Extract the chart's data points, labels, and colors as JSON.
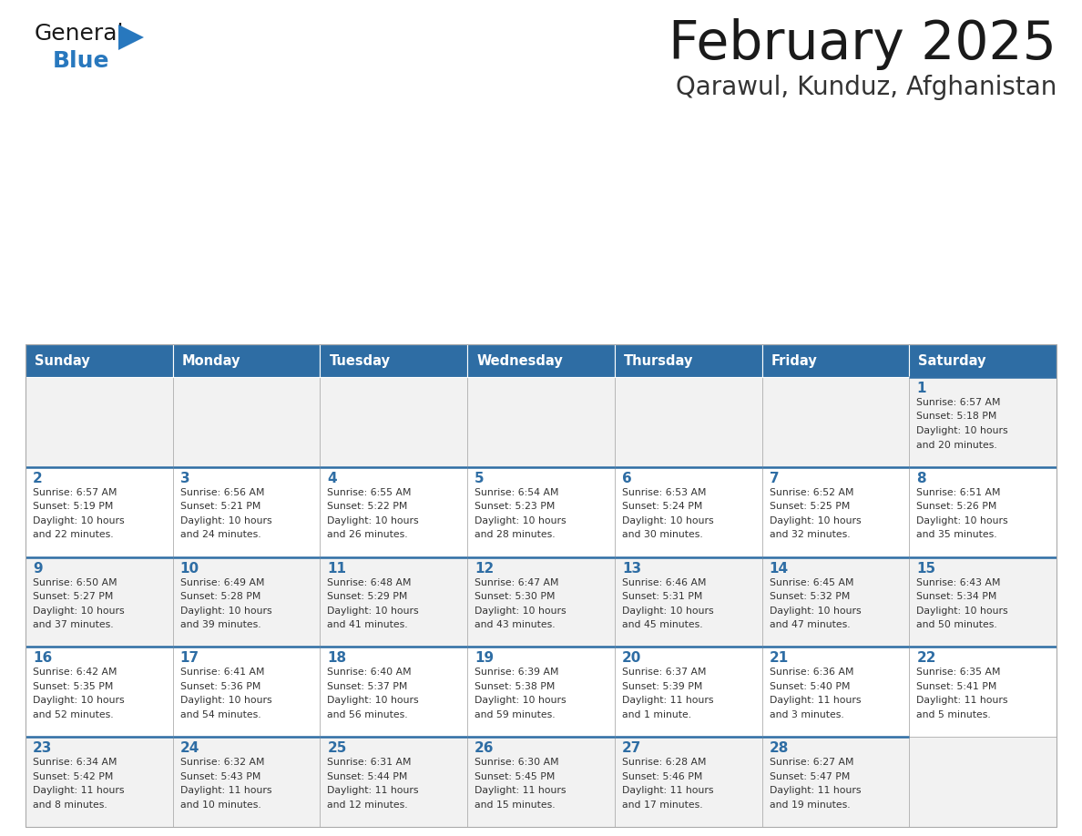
{
  "title": "February 2025",
  "subtitle": "Qarawul, Kunduz, Afghanistan",
  "header_color": "#2E6DA4",
  "header_text_color": "#FFFFFF",
  "cell_bg_even": "#F2F2F2",
  "cell_bg_odd": "#FFFFFF",
  "border_color": "#AAAAAA",
  "top_border_color": "#2E6DA4",
  "day_headers": [
    "Sunday",
    "Monday",
    "Tuesday",
    "Wednesday",
    "Thursday",
    "Friday",
    "Saturday"
  ],
  "title_color": "#1a1a1a",
  "subtitle_color": "#333333",
  "day_number_color": "#2E6DA4",
  "cell_text_color": "#333333",
  "logo_general_color": "#1a1a1a",
  "logo_blue_color": "#2878BE",
  "weeks": [
    [
      {
        "day": null,
        "info": null
      },
      {
        "day": null,
        "info": null
      },
      {
        "day": null,
        "info": null
      },
      {
        "day": null,
        "info": null
      },
      {
        "day": null,
        "info": null
      },
      {
        "day": null,
        "info": null
      },
      {
        "day": 1,
        "info": "Sunrise: 6:57 AM\nSunset: 5:18 PM\nDaylight: 10 hours\nand 20 minutes."
      }
    ],
    [
      {
        "day": 2,
        "info": "Sunrise: 6:57 AM\nSunset: 5:19 PM\nDaylight: 10 hours\nand 22 minutes."
      },
      {
        "day": 3,
        "info": "Sunrise: 6:56 AM\nSunset: 5:21 PM\nDaylight: 10 hours\nand 24 minutes."
      },
      {
        "day": 4,
        "info": "Sunrise: 6:55 AM\nSunset: 5:22 PM\nDaylight: 10 hours\nand 26 minutes."
      },
      {
        "day": 5,
        "info": "Sunrise: 6:54 AM\nSunset: 5:23 PM\nDaylight: 10 hours\nand 28 minutes."
      },
      {
        "day": 6,
        "info": "Sunrise: 6:53 AM\nSunset: 5:24 PM\nDaylight: 10 hours\nand 30 minutes."
      },
      {
        "day": 7,
        "info": "Sunrise: 6:52 AM\nSunset: 5:25 PM\nDaylight: 10 hours\nand 32 minutes."
      },
      {
        "day": 8,
        "info": "Sunrise: 6:51 AM\nSunset: 5:26 PM\nDaylight: 10 hours\nand 35 minutes."
      }
    ],
    [
      {
        "day": 9,
        "info": "Sunrise: 6:50 AM\nSunset: 5:27 PM\nDaylight: 10 hours\nand 37 minutes."
      },
      {
        "day": 10,
        "info": "Sunrise: 6:49 AM\nSunset: 5:28 PM\nDaylight: 10 hours\nand 39 minutes."
      },
      {
        "day": 11,
        "info": "Sunrise: 6:48 AM\nSunset: 5:29 PM\nDaylight: 10 hours\nand 41 minutes."
      },
      {
        "day": 12,
        "info": "Sunrise: 6:47 AM\nSunset: 5:30 PM\nDaylight: 10 hours\nand 43 minutes."
      },
      {
        "day": 13,
        "info": "Sunrise: 6:46 AM\nSunset: 5:31 PM\nDaylight: 10 hours\nand 45 minutes."
      },
      {
        "day": 14,
        "info": "Sunrise: 6:45 AM\nSunset: 5:32 PM\nDaylight: 10 hours\nand 47 minutes."
      },
      {
        "day": 15,
        "info": "Sunrise: 6:43 AM\nSunset: 5:34 PM\nDaylight: 10 hours\nand 50 minutes."
      }
    ],
    [
      {
        "day": 16,
        "info": "Sunrise: 6:42 AM\nSunset: 5:35 PM\nDaylight: 10 hours\nand 52 minutes."
      },
      {
        "day": 17,
        "info": "Sunrise: 6:41 AM\nSunset: 5:36 PM\nDaylight: 10 hours\nand 54 minutes."
      },
      {
        "day": 18,
        "info": "Sunrise: 6:40 AM\nSunset: 5:37 PM\nDaylight: 10 hours\nand 56 minutes."
      },
      {
        "day": 19,
        "info": "Sunrise: 6:39 AM\nSunset: 5:38 PM\nDaylight: 10 hours\nand 59 minutes."
      },
      {
        "day": 20,
        "info": "Sunrise: 6:37 AM\nSunset: 5:39 PM\nDaylight: 11 hours\nand 1 minute."
      },
      {
        "day": 21,
        "info": "Sunrise: 6:36 AM\nSunset: 5:40 PM\nDaylight: 11 hours\nand 3 minutes."
      },
      {
        "day": 22,
        "info": "Sunrise: 6:35 AM\nSunset: 5:41 PM\nDaylight: 11 hours\nand 5 minutes."
      }
    ],
    [
      {
        "day": 23,
        "info": "Sunrise: 6:34 AM\nSunset: 5:42 PM\nDaylight: 11 hours\nand 8 minutes."
      },
      {
        "day": 24,
        "info": "Sunrise: 6:32 AM\nSunset: 5:43 PM\nDaylight: 11 hours\nand 10 minutes."
      },
      {
        "day": 25,
        "info": "Sunrise: 6:31 AM\nSunset: 5:44 PM\nDaylight: 11 hours\nand 12 minutes."
      },
      {
        "day": 26,
        "info": "Sunrise: 6:30 AM\nSunset: 5:45 PM\nDaylight: 11 hours\nand 15 minutes."
      },
      {
        "day": 27,
        "info": "Sunrise: 6:28 AM\nSunset: 5:46 PM\nDaylight: 11 hours\nand 17 minutes."
      },
      {
        "day": 28,
        "info": "Sunrise: 6:27 AM\nSunset: 5:47 PM\nDaylight: 11 hours\nand 19 minutes."
      },
      {
        "day": null,
        "info": null
      }
    ]
  ]
}
